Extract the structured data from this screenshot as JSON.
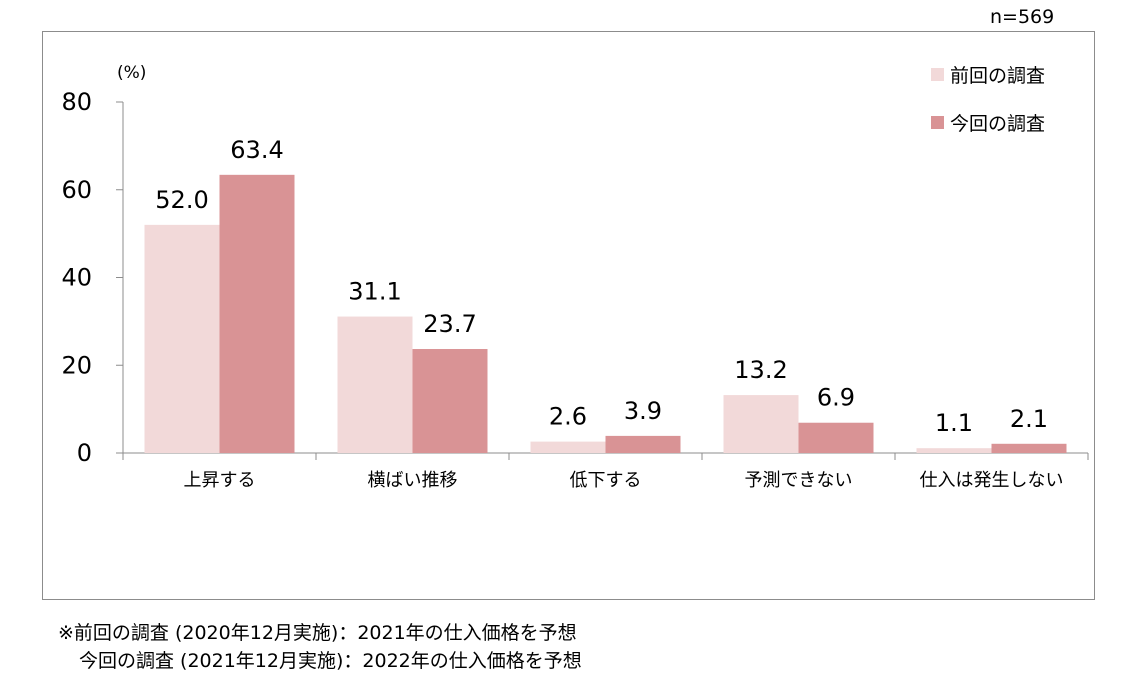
{
  "sample_size": "n=569",
  "chart_data": {
    "type": "bar",
    "title": "",
    "xlabel": "",
    "ylabel": "(%)",
    "ylim": [
      0,
      80
    ],
    "yticks": [
      0,
      20,
      40,
      60,
      80
    ],
    "categories": [
      "上昇する",
      "横ばい推移",
      "低下する",
      "予測できない",
      "仕入は発生しない"
    ],
    "series": [
      {
        "name": "前回の調査",
        "values": [
          52.0,
          31.1,
          2.6,
          13.2,
          1.1
        ],
        "labels": [
          "52.0",
          "31.1",
          "2.6",
          "13.2",
          "1.1"
        ],
        "color": "#f2d9d9"
      },
      {
        "name": "今回の調査",
        "values": [
          63.4,
          23.7,
          3.9,
          6.9,
          2.1
        ],
        "labels": [
          "63.4",
          "23.7",
          "3.9",
          "6.9",
          "2.1"
        ],
        "color": "#d99395"
      }
    ],
    "legend_position": "top-right",
    "grid": false
  },
  "notes": [
    "※前回の調査 (2020年12月実施)：2021年の仕入価格を予想",
    "今回の調査 (2021年12月実施)：2022年の仕入価格を予想"
  ]
}
